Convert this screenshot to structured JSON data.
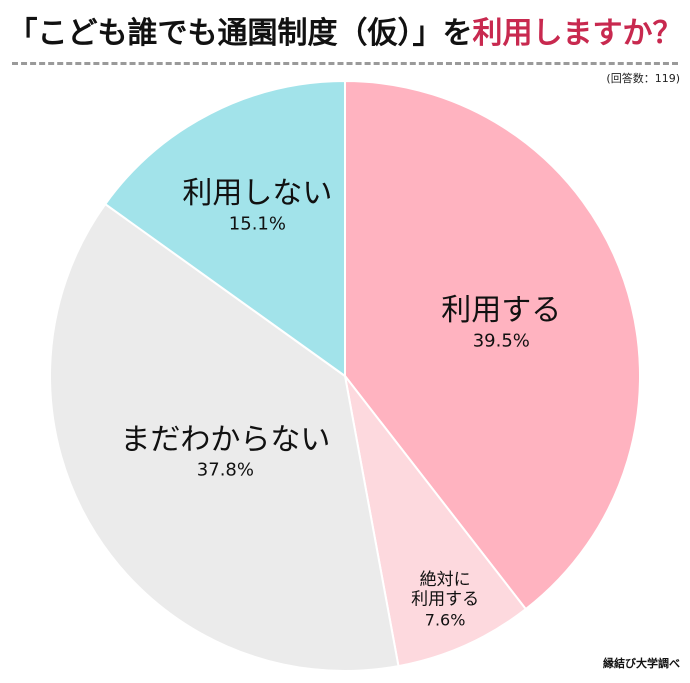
{
  "header": {
    "title_prefix": "「こども誰でも通園制度（仮）」を",
    "title_accent": "利用しますか？",
    "respondents": "(回答数：119)"
  },
  "colors": {
    "accent": "#c8294f",
    "use": "#ffb3c0",
    "actively_use": "#fdd9de",
    "unsure": "#ebebeb",
    "not_use": "#a2e3ea"
  },
  "chart_data": {
    "type": "pie",
    "slices": [
      {
        "label": "利用する",
        "value": 39.5,
        "value_label": "39.5%",
        "color": "#ffb3c0"
      },
      {
        "label": "絶対に利用する",
        "value": 7.6,
        "value_label": "7.6%",
        "color": "#fdd9de"
      },
      {
        "label": "まだわからない",
        "value": 37.8,
        "value_label": "37.8%",
        "color": "#ebebeb"
      },
      {
        "label": "利用しない",
        "value": 15.1,
        "value_label": "15.1%",
        "color": "#a2e3ea"
      }
    ]
  },
  "footer": {
    "credit": "縁結び大学調べ"
  }
}
